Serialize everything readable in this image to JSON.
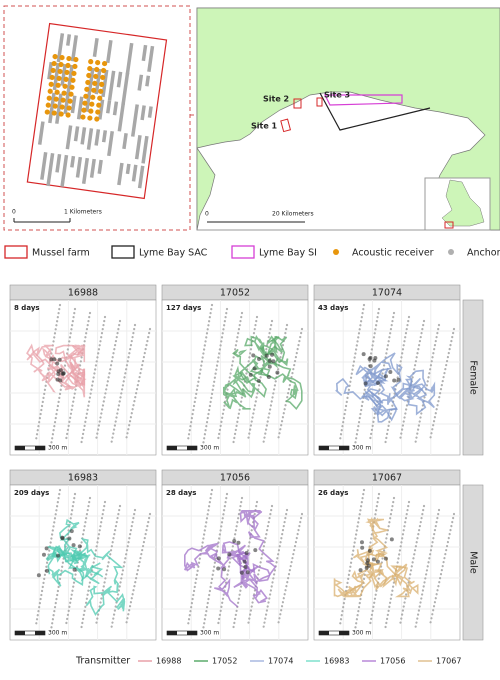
{
  "inset": {
    "scale_labels": [
      "0",
      "1 Kilometers"
    ]
  },
  "map": {
    "site_labels": [
      "Site 2",
      "Site 3",
      "Site 1"
    ],
    "scale_labels": [
      "0",
      "20 Kilometers"
    ]
  },
  "legend": [
    {
      "label": "Mussel farm",
      "color": "#d62728"
    },
    {
      "label": "Lyme Bay SAC",
      "color": "#222222"
    },
    {
      "label": "Lyme Bay SI",
      "color": "#d63fd6"
    },
    {
      "label": "Acoustic receiver",
      "color": "#e8960c"
    },
    {
      "label": "Anchor",
      "color": "#b0b0b0"
    }
  ],
  "panels": [
    {
      "title": "16988",
      "days": "8 days",
      "scale": "300 m",
      "color": "#e8a0a8"
    },
    {
      "title": "17052",
      "days": "127 days",
      "scale": "300 m",
      "color": "#5aaa6a"
    },
    {
      "title": "17074",
      "days": "43 days",
      "scale": "300 m",
      "color": "#7f98cc"
    },
    {
      "title": "16983",
      "days": "209 days",
      "scale": "300 m",
      "color": "#4ec9b0"
    },
    {
      "title": "17056",
      "days": "28 days",
      "scale": "300 m",
      "color": "#a070c8"
    },
    {
      "title": "17067",
      "days": "26 days",
      "scale": "300 m",
      "color": "#d9b070"
    }
  ],
  "facets": [
    "Female",
    "Male"
  ],
  "transmitter_legend": {
    "title": "Transmitter",
    "items": [
      {
        "name": "16988",
        "color": "#e8a0a8"
      },
      {
        "name": "17052",
        "color": "#5aaa6a"
      },
      {
        "name": "17074",
        "color": "#a8b8e0"
      },
      {
        "name": "16983",
        "color": "#7ee0cc"
      },
      {
        "name": "17056",
        "color": "#b888d8"
      },
      {
        "name": "17067",
        "color": "#e0c090"
      }
    ]
  }
}
